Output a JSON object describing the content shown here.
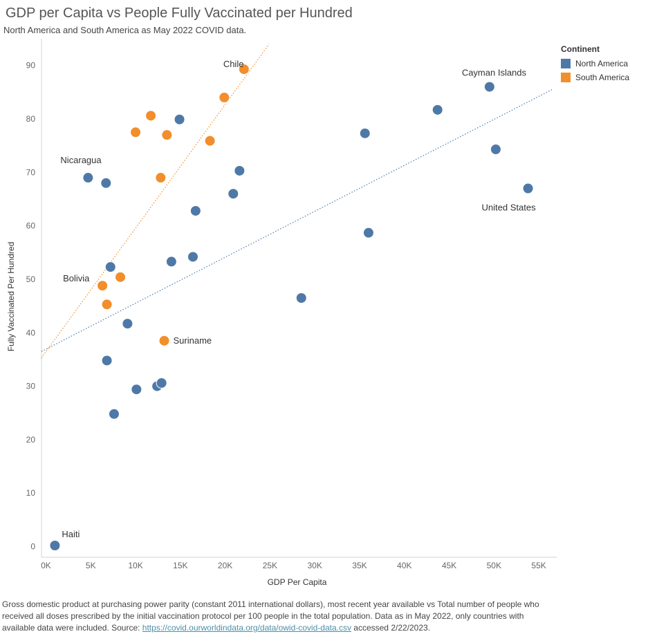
{
  "title": "GDP per Capita vs People Fully Vaccinated per Hundred",
  "subtitle": "North America and South America as May 2022 COVID data.",
  "legend": {
    "title": "Continent",
    "items": [
      {
        "label": "North America",
        "color": "#4e79a7"
      },
      {
        "label": "South America",
        "color": "#f28e2b"
      }
    ]
  },
  "footnote": {
    "text1": "Gross domestic product at purchasing power parity (constant 2011 international dollars), most recent year available vs Total number of people who received all doses prescribed by the initial vaccination protocol per 100 people in the total population. Data as in May 2022, only countries with available data were included. Source: ",
    "link": "https://covid.ourworldindata.org/data/owid-covid-data.csv",
    "text2": " accessed 2/22/2023."
  },
  "chart_data": {
    "type": "scatter",
    "title": "GDP per Capita vs People Fully Vaccinated per Hundred",
    "xlabel": "GDP Per Capita",
    "ylabel": "Fully Vaccinated Per Hundred",
    "xlim": [
      -500,
      57000
    ],
    "ylim": [
      -2,
      95
    ],
    "x_ticks": [
      0,
      5000,
      10000,
      15000,
      20000,
      25000,
      30000,
      35000,
      40000,
      45000,
      50000,
      55000
    ],
    "x_tick_labels": [
      "0K",
      "5K",
      "10K",
      "15K",
      "20K",
      "25K",
      "30K",
      "35K",
      "40K",
      "45K",
      "50K",
      "55K"
    ],
    "y_ticks": [
      0,
      10,
      20,
      30,
      40,
      50,
      60,
      70,
      80,
      90
    ],
    "y_tick_labels": [
      "0",
      "10",
      "20",
      "30",
      "40",
      "50",
      "60",
      "70",
      "80",
      "90"
    ],
    "series": [
      {
        "name": "North America",
        "color": "#4e79a7",
        "points": [
          {
            "x": 1000,
            "y": 0.2,
            "label": "Haiti"
          },
          {
            "x": 4700,
            "y": 69.0,
            "label": "Nicaragua"
          },
          {
            "x": 6700,
            "y": 68.0
          },
          {
            "x": 7200,
            "y": 52.3
          },
          {
            "x": 6800,
            "y": 34.8
          },
          {
            "x": 7600,
            "y": 24.8
          },
          {
            "x": 9100,
            "y": 41.7
          },
          {
            "x": 10100,
            "y": 29.4
          },
          {
            "x": 12400,
            "y": 30.0
          },
          {
            "x": 12900,
            "y": 30.6
          },
          {
            "x": 14000,
            "y": 53.3
          },
          {
            "x": 14900,
            "y": 79.9
          },
          {
            "x": 16400,
            "y": 54.2
          },
          {
            "x": 16700,
            "y": 62.8
          },
          {
            "x": 20900,
            "y": 66.0
          },
          {
            "x": 21600,
            "y": 70.3
          },
          {
            "x": 28500,
            "y": 46.5
          },
          {
            "x": 35600,
            "y": 77.3
          },
          {
            "x": 36000,
            "y": 58.7
          },
          {
            "x": 43700,
            "y": 81.7
          },
          {
            "x": 49500,
            "y": 86.0,
            "label": "Cayman Islands"
          },
          {
            "x": 50200,
            "y": 74.3
          },
          {
            "x": 53800,
            "y": 67.0,
            "label": "United States"
          }
        ]
      },
      {
        "name": "South America",
        "color": "#f28e2b",
        "points": [
          {
            "x": 6300,
            "y": 48.8,
            "label": "Bolivia"
          },
          {
            "x": 6800,
            "y": 45.3
          },
          {
            "x": 8300,
            "y": 50.4
          },
          {
            "x": 10000,
            "y": 77.5
          },
          {
            "x": 11700,
            "y": 80.6
          },
          {
            "x": 12800,
            "y": 69.0
          },
          {
            "x": 13200,
            "y": 38.5,
            "label": "Suriname"
          },
          {
            "x": 13500,
            "y": 77.0
          },
          {
            "x": 18300,
            "y": 75.9
          },
          {
            "x": 19900,
            "y": 84.0
          },
          {
            "x": 22100,
            "y": 89.3,
            "label": "Chile"
          }
        ]
      }
    ],
    "trendlines": [
      {
        "series": "North America",
        "color": "#4e79a7",
        "x0": -500,
        "y0": 36.5,
        "x1": 56500,
        "y1": 85.5
      },
      {
        "series": "South America",
        "color": "#f28e2b",
        "x0": -500,
        "y0": 35.3,
        "x1": 24900,
        "y1": 94.0
      }
    ]
  }
}
